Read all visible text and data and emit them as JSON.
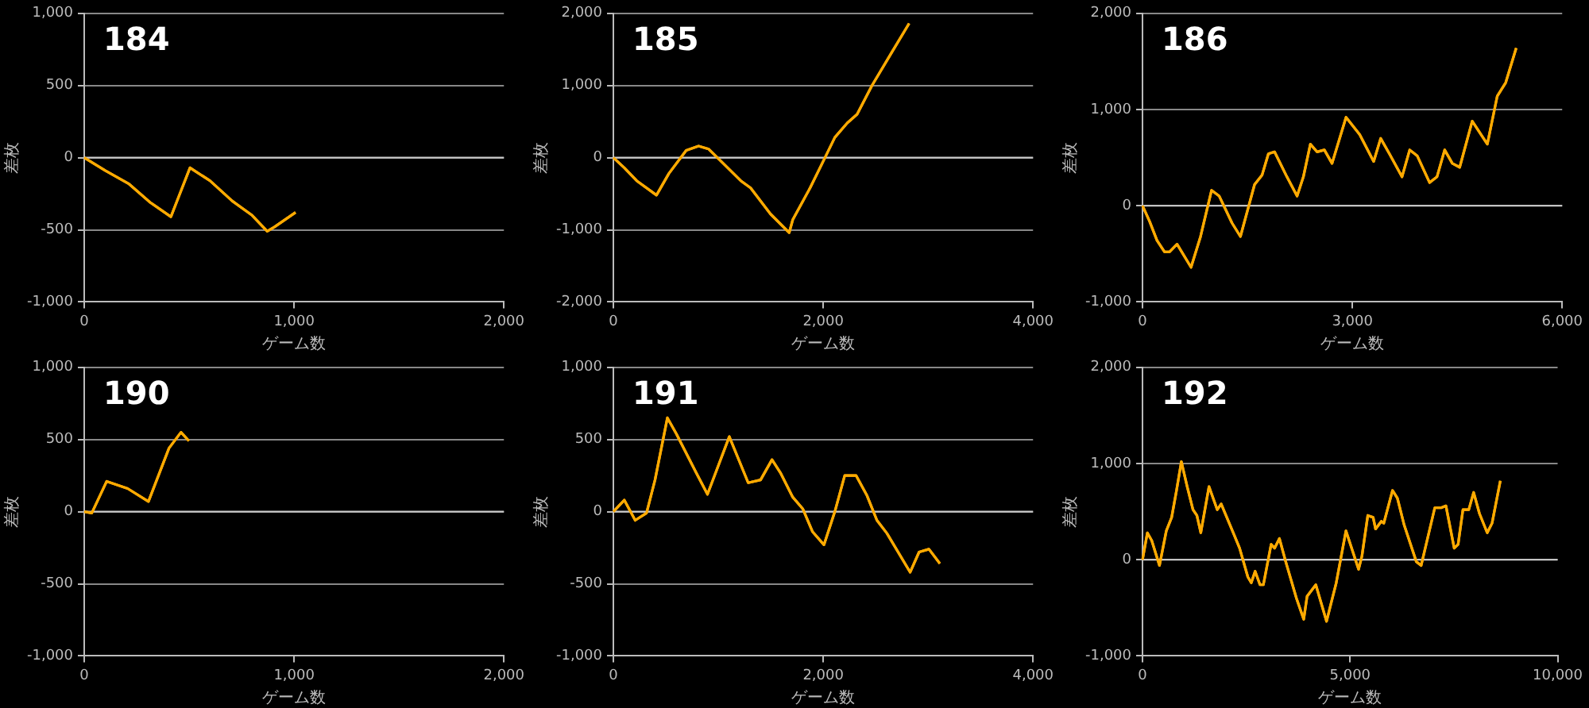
{
  "chart_data": [
    {
      "type": "line",
      "title": "184",
      "xlabel": "ゲーム数",
      "ylabel": "差枚",
      "grid": "y",
      "xlim": [
        0,
        2000
      ],
      "xticks": [
        {
          "value": 0,
          "label": "0"
        },
        {
          "value": 1000,
          "label": "1,000"
        },
        {
          "value": 2000,
          "label": "2,000"
        }
      ],
      "ylim": [
        -1000,
        1000
      ],
      "yticks": [
        {
          "value": -1000,
          "label": "-1,000"
        },
        -500,
        0,
        500,
        {
          "value": 1000,
          "label": "1,000"
        }
      ],
      "ref_lines": [
        {
          "axis": "y",
          "value": 0,
          "color": "#cccccc"
        }
      ],
      "x": [
        0,
        100,
        211,
        314,
        413,
        504,
        599,
        705,
        800,
        872,
        907,
        1007
      ],
      "series": [
        {
          "color": "#ffaa00",
          "values": [
            0,
            -90,
            -180,
            -310,
            -410,
            -70,
            -160,
            -300,
            -400,
            -510,
            -480,
            -380
          ]
        }
      ]
    },
    {
      "type": "line",
      "title": "185",
      "xlabel": "ゲーム数",
      "ylabel": "差枚",
      "grid": "y",
      "xlim": [
        0,
        4000
      ],
      "xticks": [
        {
          "value": 0,
          "label": "0"
        },
        {
          "value": 2000,
          "label": "2,000"
        },
        {
          "value": 4000,
          "label": "4,000"
        }
      ],
      "ylim": [
        -2000,
        2000
      ],
      "yticks": [
        {
          "value": -2000,
          "label": "-2,000"
        },
        {
          "value": -1000,
          "label": "-1,000"
        },
        0,
        {
          "value": 1000,
          "label": "1,000"
        },
        {
          "value": 2000,
          "label": "2,000"
        }
      ],
      "ref_lines": [
        {
          "axis": "y",
          "value": 0,
          "color": "#cccccc"
        }
      ],
      "x": [
        0,
        104,
        222,
        411,
        529,
        694,
        812,
        907,
        1214,
        1308,
        1497,
        1676,
        1710,
        1875,
        2017,
        2111,
        2229,
        2323,
        2465,
        2654,
        2819
      ],
      "series": [
        {
          "color": "#ffaa00",
          "values": [
            0,
            -140,
            -320,
            -520,
            -220,
            100,
            160,
            120,
            -320,
            -420,
            -780,
            -1040,
            -860,
            -420,
            0,
            280,
            480,
            600,
            1000,
            1460,
            1860
          ]
        }
      ]
    },
    {
      "type": "line",
      "title": "186",
      "xlabel": "ゲーム数",
      "ylabel": "差枚",
      "grid": "y",
      "xlim": [
        0,
        6000
      ],
      "xticks": [
        {
          "value": 0,
          "label": "0"
        },
        {
          "value": 3000,
          "label": "3,000"
        },
        {
          "value": 6000,
          "label": "6,000"
        }
      ],
      "ylim": [
        -1000,
        2000
      ],
      "yticks": [
        {
          "value": -1000,
          "label": "-1,000"
        },
        0,
        {
          "value": 1000,
          "label": "1,000"
        },
        {
          "value": 2000,
          "label": "2,000"
        }
      ],
      "ref_lines": [
        {
          "axis": "y",
          "value": 0,
          "color": "#cccccc"
        }
      ],
      "x": [
        0,
        100,
        207,
        315,
        386,
        494,
        694,
        830,
        987,
        1097,
        1280,
        1400,
        1602,
        1710,
        1800,
        1888,
        2065,
        2210,
        2300,
        2400,
        2495,
        2600,
        2710,
        2910,
        3105,
        3305,
        3405,
        3530,
        3710,
        3820,
        3927,
        4105,
        4210,
        4320,
        4430,
        4535,
        4714,
        4930,
        5072,
        5193,
        5343
      ],
      "series": [
        {
          "color": "#ffaa00",
          "values": [
            0,
            -160,
            -360,
            -480,
            -480,
            -400,
            -640,
            -320,
            160,
            100,
            -180,
            -320,
            220,
            320,
            540,
            560,
            300,
            100,
            300,
            640,
            560,
            580,
            440,
            920,
            740,
            460,
            700,
            540,
            300,
            580,
            520,
            240,
            300,
            580,
            440,
            400,
            880,
            640,
            1140,
            1280,
            1640
          ]
        }
      ]
    },
    {
      "type": "line",
      "title": "190",
      "xlabel": "ゲーム数",
      "ylabel": "差枚",
      "grid": "y",
      "xlim": [
        0,
        2000
      ],
      "xticks": [
        {
          "value": 0,
          "label": "0"
        },
        {
          "value": 1000,
          "label": "1,000"
        },
        {
          "value": 2000,
          "label": "2,000"
        }
      ],
      "ylim": [
        -1000,
        1000
      ],
      "yticks": [
        {
          "value": -1000,
          "label": "-1,000"
        },
        -500,
        0,
        500,
        {
          "value": 1000,
          "label": "1,000"
        }
      ],
      "ref_lines": [
        {
          "axis": "y",
          "value": 0,
          "color": "#cccccc"
        }
      ],
      "x": [
        0,
        36,
        107,
        207,
        306,
        404,
        461,
        499
      ],
      "series": [
        {
          "color": "#ffaa00",
          "values": [
            0,
            -10,
            210,
            160,
            70,
            440,
            550,
            490
          ]
        }
      ]
    },
    {
      "type": "line",
      "title": "191",
      "xlabel": "ゲーム数",
      "ylabel": "差枚",
      "grid": "y",
      "xlim": [
        0,
        4000
      ],
      "xticks": [
        {
          "value": 0,
          "label": "0"
        },
        {
          "value": 2000,
          "label": "2,000"
        },
        {
          "value": 4000,
          "label": "4,000"
        }
      ],
      "ylim": [
        -1000,
        1000
      ],
      "yticks": [
        {
          "value": -1000,
          "label": "-1,000"
        },
        -500,
        0,
        500,
        {
          "value": 1000,
          "label": "1,000"
        }
      ],
      "ref_lines": [
        {
          "axis": "y",
          "value": 0,
          "color": "#cccccc"
        }
      ],
      "x": [
        0,
        104,
        208,
        316,
        397,
        515,
        600,
        789,
        897,
        1105,
        1285,
        1403,
        1512,
        1592,
        1710,
        1805,
        1899,
        2007,
        2111,
        2205,
        2314,
        2418,
        2512,
        2607,
        2829,
        2914,
        3008,
        3112
      ],
      "series": [
        {
          "color": "#ffaa00",
          "values": [
            0,
            80,
            -60,
            -10,
            220,
            650,
            540,
            270,
            120,
            520,
            200,
            220,
            360,
            270,
            100,
            20,
            -140,
            -230,
            0,
            250,
            250,
            110,
            -60,
            -150,
            -420,
            -280,
            -260,
            -360
          ]
        }
      ]
    },
    {
      "type": "line",
      "title": "192",
      "xlabel": "ゲーム数",
      "ylabel": "差枚",
      "grid": "y",
      "xlim": [
        0,
        10000
      ],
      "xticks": [
        {
          "value": 0,
          "label": "0"
        },
        {
          "value": 5000,
          "label": "5,000"
        },
        {
          "value": 10000,
          "label": "10,000"
        }
      ],
      "ylim": [
        -1000,
        2000
      ],
      "yticks": [
        {
          "value": -1000,
          "label": "-1,000"
        },
        0,
        {
          "value": 1000,
          "label": "1,000"
        },
        {
          "value": 2000,
          "label": "2,000"
        }
      ],
      "ref_lines": [
        {
          "axis": "y",
          "value": 0,
          "color": "#cccccc"
        }
      ],
      "x": [
        0,
        117,
        222,
        409,
        573,
        702,
        819,
        936,
        1076,
        1216,
        1310,
        1404,
        1602,
        1801,
        1895,
        2187,
        2339,
        2538,
        2620,
        2713,
        2830,
        2912,
        3099,
        3181,
        3298,
        3450,
        3708,
        3883,
        3965,
        4175,
        4433,
        4667,
        4901,
        5053,
        5205,
        5287,
        5427,
        5556,
        5614,
        5754,
        5813,
        6023,
        6140,
        6304,
        6596,
        6713,
        7041,
        7193,
        7310,
        7509,
        7603,
        7719,
        7860,
        7977,
        8117,
        8304,
        8421,
        8620
      ],
      "series": [
        {
          "color": "#ffaa00",
          "values": [
            0,
            280,
            200,
            -60,
            300,
            440,
            720,
            1020,
            760,
            520,
            460,
            280,
            760,
            520,
            580,
            280,
            120,
            -180,
            -240,
            -120,
            -260,
            -260,
            160,
            120,
            220,
            -20,
            -400,
            -620,
            -380,
            -260,
            -640,
            -240,
            300,
            100,
            -100,
            40,
            460,
            440,
            320,
            400,
            380,
            720,
            640,
            360,
            -20,
            -60,
            540,
            540,
            560,
            120,
            160,
            520,
            520,
            700,
            480,
            280,
            380,
            820
          ]
        }
      ]
    }
  ]
}
